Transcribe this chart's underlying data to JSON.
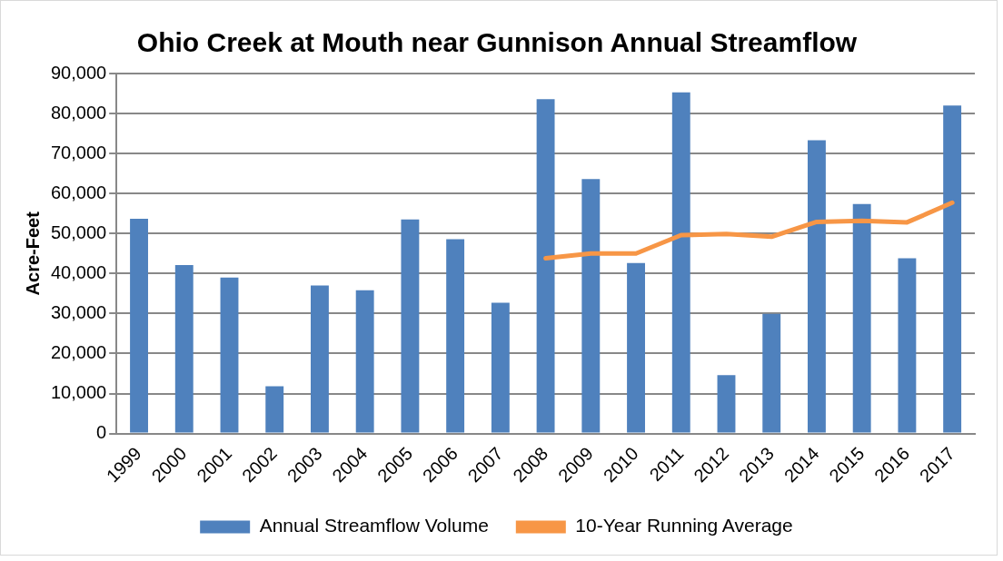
{
  "chart_data": {
    "type": "bar",
    "title": "Ohio Creek at Mouth near Gunnison Annual Streamflow",
    "ylabel": "Acre-Feet",
    "categories": [
      "1999",
      "2000",
      "2001",
      "2002",
      "2003",
      "2004",
      "2005",
      "2006",
      "2007",
      "2008",
      "2009",
      "2010",
      "2011",
      "2012",
      "2013",
      "2014",
      "2015",
      "2016",
      "2017"
    ],
    "series": [
      {
        "name": "Annual Streamflow Volume",
        "color": "#4f81bd",
        "values": [
          53700,
          42100,
          39000,
          11800,
          37000,
          35800,
          53500,
          48600,
          32700,
          83600,
          63600,
          42600,
          85300,
          14600,
          29900,
          73300,
          57400,
          43800,
          82000
        ]
      },
      {
        "name": "10-Year Running Average",
        "type": "line",
        "color": "#f79646",
        "values": [
          null,
          null,
          null,
          null,
          null,
          null,
          null,
          null,
          null,
          43800,
          45000,
          45000,
          49600,
          49900,
          49200,
          52900,
          53200,
          52800,
          57700
        ]
      }
    ],
    "ylim": [
      0,
      90000
    ],
    "yticks": [
      {
        "value": 0,
        "label": "0"
      },
      {
        "value": 10000,
        "label": "10,000"
      },
      {
        "value": 20000,
        "label": "20,000"
      },
      {
        "value": 30000,
        "label": "30,000"
      },
      {
        "value": 40000,
        "label": "40,000"
      },
      {
        "value": 50000,
        "label": "50,000"
      },
      {
        "value": 60000,
        "label": "60,000"
      },
      {
        "value": 70000,
        "label": "70,000"
      },
      {
        "value": 80000,
        "label": "80,000"
      },
      {
        "value": 90000,
        "label": "90,000"
      }
    ],
    "grid": "y",
    "legend": "bottom",
    "marker": "none",
    "line_style": "solid"
  }
}
